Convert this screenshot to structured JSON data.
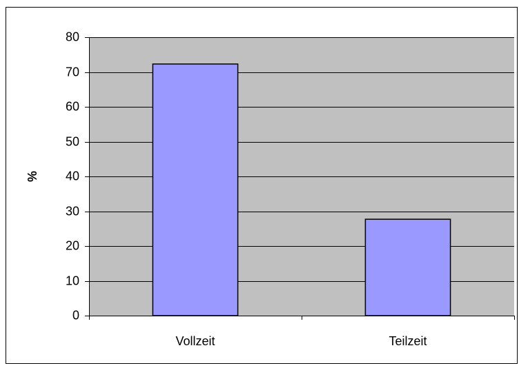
{
  "chart_data": {
    "type": "bar",
    "ylabel": "%",
    "categories": [
      "Vollzeit",
      "Teilzeit"
    ],
    "values": [
      72.3,
      27.7
    ],
    "color": "#9999ff",
    "ylim": [
      0,
      80
    ],
    "yticks": [
      0,
      10,
      20,
      30,
      40,
      50,
      60,
      70,
      80
    ],
    "grid": true
  }
}
